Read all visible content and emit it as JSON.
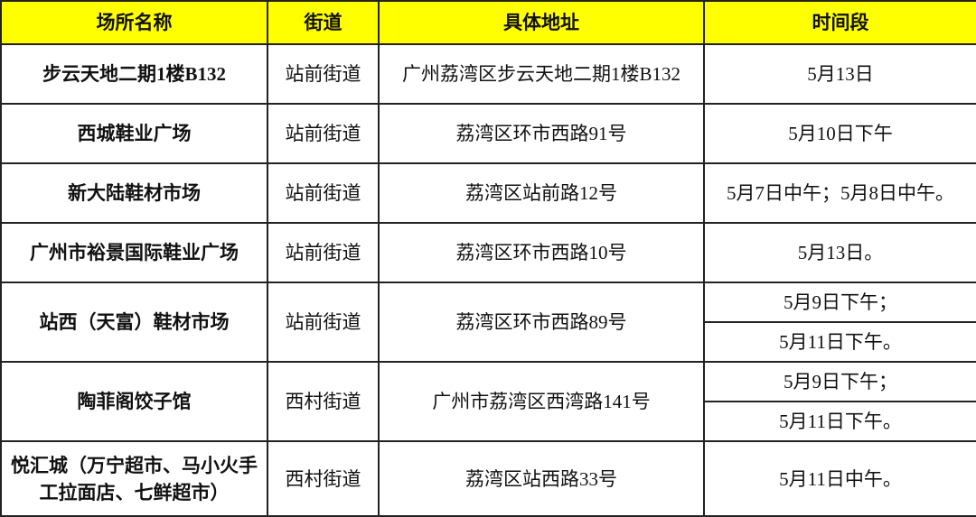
{
  "headers": [
    "场所名称",
    "街道",
    "具体地址",
    "时间段"
  ],
  "rows": [
    {
      "name": "步云天地二期1楼B132",
      "street": "站前街道",
      "address": "广州荔湾区步云天地二期1楼B132",
      "times": [
        "5月13日"
      ]
    },
    {
      "name": "西城鞋业广场",
      "street": "站前街道",
      "address": "荔湾区环市西路91号",
      "times": [
        "5月10日下午"
      ]
    },
    {
      "name": "新大陆鞋材市场",
      "street": "站前街道",
      "address": "荔湾区站前路12号",
      "times": [
        "5月7日中午；5月8日中午。"
      ]
    },
    {
      "name": "广州市裕景国际鞋业广场",
      "street": "站前街道",
      "address": "荔湾区环市西路10号",
      "times": [
        "5月13日。"
      ]
    },
    {
      "name": "站西（天富）鞋材市场",
      "street": "站前街道",
      "address": "荔湾区环市西路89号",
      "times": [
        "5月9日下午；",
        "5月11日下午。"
      ]
    },
    {
      "name": "陶菲阁饺子馆",
      "street": "西村街道",
      "address": "广州市荔湾区西湾路141号",
      "times": [
        "5月9日下午；",
        "5月11日下午。"
      ]
    },
    {
      "name": "悦汇城（万宁超市、马小火手工拉面店、七鲜超市）",
      "street": "西村街道",
      "address": "荔湾区站西路33号",
      "times": [
        "5月11日中午。"
      ]
    }
  ],
  "colors": {
    "header_bg": "#ffff00",
    "border": "#222222"
  }
}
